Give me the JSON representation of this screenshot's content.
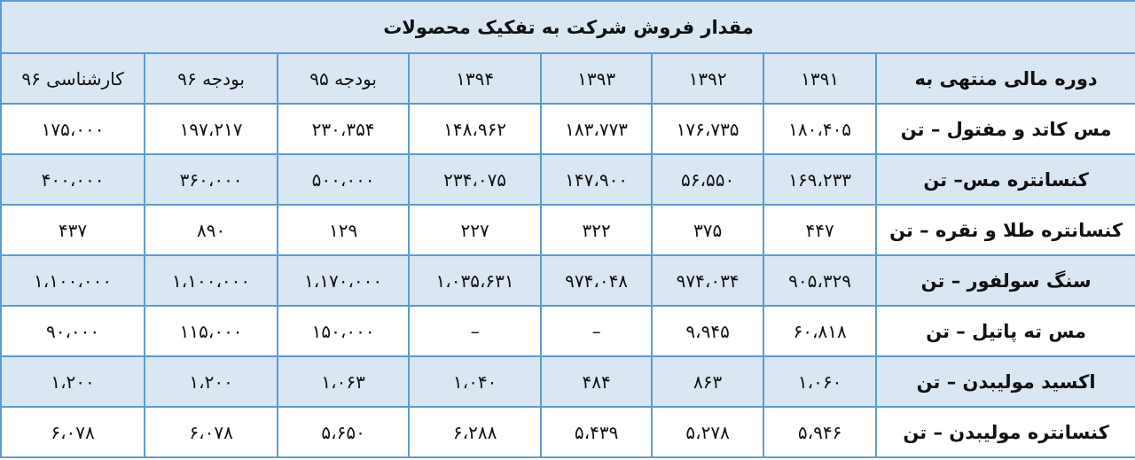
{
  "title": "مقدار فروش شرکت به تفکیک محصولات",
  "header": [
    "دوره مالی منتهی به",
    "۱۳۹۱",
    "۱۳۹۲",
    "۱۳۹۳",
    "۱۳۹۴",
    "بودجه ۹۵",
    "بودجه ۹۶",
    "کارشناسی ۹۶"
  ],
  "rows": [
    {
      "label": "مس کاتد و مفتول – تن",
      "values": [
        "۱۸۰،۴۰۵",
        "۱۷۶،۷۳۵",
        "۱۸۳،۷۷۳",
        "۱۴۸،۹۶۲",
        "۲۳۰،۳۵۴",
        "۱۹۷،۲۱۷",
        "۱۷۵،۰۰۰"
      ]
    },
    {
      "label": "کنسانتره مس– تن",
      "values": [
        "۱۶۹،۲۳۳",
        "۵۶،۵۵۰",
        "۱۴۷،۹۰۰",
        "۲۳۴،۰۷۵",
        "۵۰۰،۰۰۰",
        "۳۶۰،۰۰۰",
        "۴۰۰،۰۰۰"
      ]
    },
    {
      "label": "کنسانتره طلا و نقره – تن",
      "values": [
        "۴۴۷",
        "۳۷۵",
        "۳۲۲",
        "۲۲۷",
        "۱۲۹",
        "۸۹۰",
        "۴۳۷"
      ]
    },
    {
      "label": "سنگ سولفور – تن",
      "values": [
        "۹۰۵،۳۲۹",
        "۹۷۴،۰۳۴",
        "۹۷۴،۰۴۸",
        "۱،۰۳۵،۶۳۱",
        "۱،۱۷۰،۰۰۰",
        "۱،۱۰۰،۰۰۰",
        "۱،۱۰۰،۰۰۰"
      ]
    },
    {
      "label": "مس ته پاتیل – تن",
      "values": [
        "۶۰،۸۱۸",
        "۹،۹۴۵",
        "–",
        "–",
        "۱۵۰،۰۰۰",
        "۱۱۵،۰۰۰",
        "۹۰،۰۰۰"
      ]
    },
    {
      "label": "اکسید مولیبدن – تن",
      "values": [
        "۱،۰۶۰",
        "۸۶۳",
        "۴۸۴",
        "۱،۰۴۰",
        "۱،۰۶۳",
        "۱،۲۰۰",
        "۱،۲۰۰"
      ]
    },
    {
      "label": "کنسانتره مولیبدن – تن",
      "values": [
        "۵،۹۴۶",
        "۵،۲۷۸",
        "۵،۴۳۹",
        "۶،۲۸۸",
        "۵،۶۵۰",
        "۶،۰۷۸",
        "۶،۰۷۸"
      ]
    }
  ],
  "colors": {
    "border": "#5b9bd5",
    "shaded_row": "#dbe6f3",
    "plain_row": "#ffffff"
  }
}
